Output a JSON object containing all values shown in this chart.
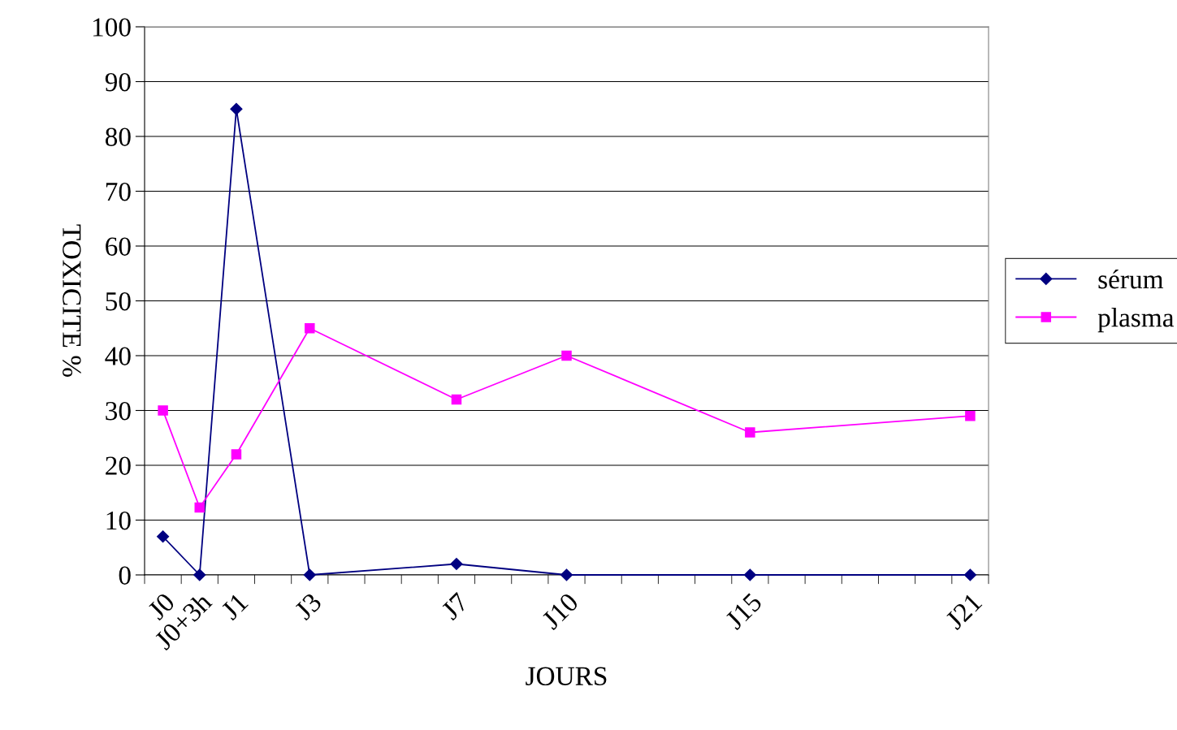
{
  "chart_data": {
    "type": "line",
    "xlabel": "JOURS",
    "ylabel": "TOXICITE %",
    "categories": [
      "J0",
      "J0+3h",
      "J1",
      null,
      "J3",
      null,
      null,
      null,
      "J7",
      null,
      null,
      "J10",
      null,
      null,
      null,
      null,
      "J15",
      null,
      null,
      null,
      null,
      null,
      "J21"
    ],
    "series": [
      {
        "name": "sérum",
        "color": "#000080",
        "marker": "diamond",
        "values": [
          7,
          0,
          85,
          null,
          0,
          null,
          null,
          null,
          2,
          null,
          null,
          0,
          null,
          null,
          null,
          null,
          0,
          null,
          null,
          null,
          null,
          null,
          0
        ]
      },
      {
        "name": "plasma",
        "color": "#ff00ff",
        "marker": "square",
        "values": [
          30,
          12.3,
          22,
          null,
          45,
          null,
          null,
          null,
          32,
          null,
          null,
          40,
          null,
          null,
          null,
          null,
          26,
          null,
          null,
          null,
          null,
          null,
          29
        ]
      }
    ],
    "ylim": [
      0,
      100
    ],
    "yticks": [
      0,
      10,
      20,
      30,
      40,
      50,
      60,
      70,
      80,
      90,
      100
    ],
    "grid": "y",
    "legend": "right",
    "line_style": "solid"
  }
}
